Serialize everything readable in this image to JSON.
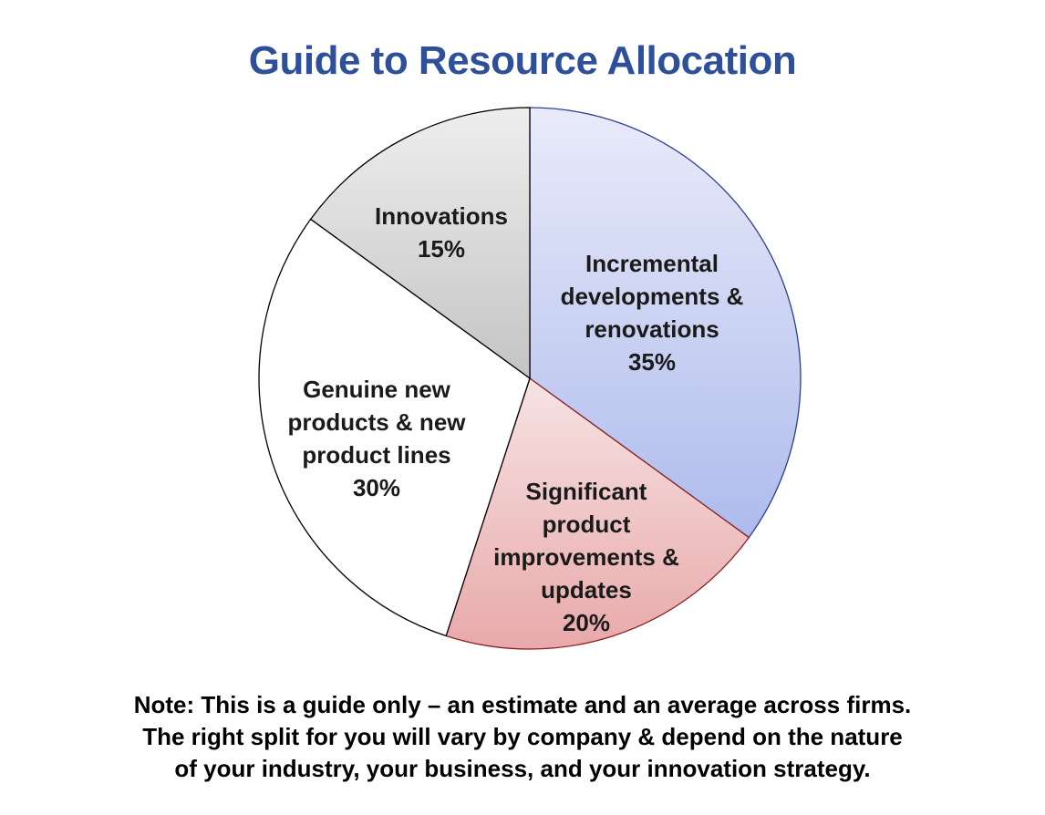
{
  "chart_data": {
    "type": "pie",
    "title": "Guide to Resource Allocation",
    "slices": [
      {
        "label": [
          "Incremental",
          "developments &",
          "renovations"
        ],
        "value": 35,
        "value_label": "35%",
        "color": "#aebbec",
        "edge": "#2e3f8f"
      },
      {
        "label": [
          "Significant",
          "product",
          "improvements &",
          "updates"
        ],
        "value": 20,
        "value_label": "20%",
        "color": "#e8a9aa",
        "edge": "#8f1f22"
      },
      {
        "label": [
          "Genuine new",
          "products & new",
          "product lines"
        ],
        "value": 30,
        "value_label": "30%",
        "color": "#ffffff",
        "edge": "#000000"
      },
      {
        "label": [
          "Innovations"
        ],
        "value": 15,
        "value_label": "15%",
        "color": "#c4c4c4",
        "edge": "#000000"
      }
    ],
    "start_angle": "12 o'clock",
    "direction": "clockwise",
    "legend": "none"
  },
  "note": {
    "lines": [
      "Note: This is a guide only – an estimate and an average across firms.",
      "The right split for you will vary by company & depend on the nature",
      "of your industry, your business, and your innovation strategy."
    ]
  }
}
